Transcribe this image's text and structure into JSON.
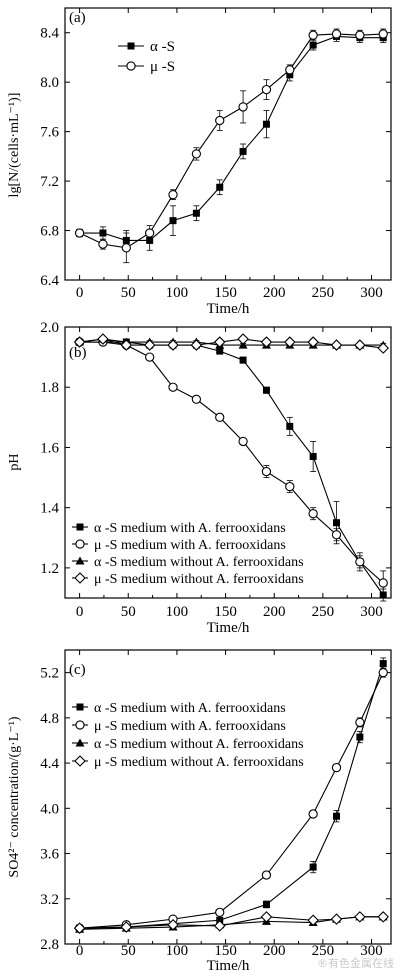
{
  "watermark": "®有色金属在线",
  "chart_data": [
    {
      "type": "line",
      "panel_label": "(a)",
      "xlabel": "Time/h",
      "ylabel": "lg[N/(cells·mL⁻¹)]",
      "xlim": [
        -15,
        320
      ],
      "ylim": [
        6.4,
        8.6
      ],
      "xticks": [
        0,
        50,
        100,
        150,
        200,
        250,
        300
      ],
      "yticks": [
        6.4,
        6.8,
        7.2,
        7.6,
        8.0,
        8.4
      ],
      "legend_position": "top-left",
      "series": [
        {
          "name": "α -S",
          "marker": "square-filled",
          "x": [
            0,
            24,
            48,
            72,
            96,
            120,
            144,
            168,
            192,
            216,
            240,
            264,
            288,
            312
          ],
          "y": [
            6.78,
            6.78,
            6.72,
            6.72,
            6.88,
            6.94,
            7.15,
            7.44,
            7.66,
            8.06,
            8.3,
            8.37,
            8.36,
            8.36
          ],
          "err": [
            0.03,
            0.05,
            0.08,
            0.08,
            0.12,
            0.06,
            0.06,
            0.06,
            0.11,
            0.05,
            0.04,
            0.04,
            0.04,
            0.04
          ]
        },
        {
          "name": "μ -S",
          "marker": "circle-open",
          "x": [
            0,
            24,
            48,
            72,
            96,
            120,
            144,
            168,
            192,
            216,
            240,
            264,
            288,
            312
          ],
          "y": [
            6.78,
            6.69,
            6.66,
            6.78,
            7.09,
            7.42,
            7.69,
            7.8,
            7.94,
            8.1,
            8.38,
            8.39,
            8.38,
            8.39
          ],
          "err": [
            0.03,
            0.04,
            0.12,
            0.06,
            0.04,
            0.05,
            0.08,
            0.13,
            0.08,
            0.04,
            0.04,
            0.04,
            0.04,
            0.04
          ]
        }
      ]
    },
    {
      "type": "line",
      "panel_label": "(b)",
      "xlabel": "Time/h",
      "ylabel": "pH",
      "xlim": [
        -15,
        320
      ],
      "ylim": [
        1.1,
        2.0
      ],
      "xticks": [
        0,
        50,
        100,
        150,
        200,
        250,
        300
      ],
      "yticks": [
        1.2,
        1.4,
        1.6,
        1.8,
        2.0
      ],
      "legend_position": "bottom-left",
      "series": [
        {
          "name": "α -S medium with A. ferrooxidans",
          "marker": "square-filled",
          "x": [
            0,
            24,
            48,
            72,
            96,
            120,
            144,
            168,
            192,
            216,
            240,
            264,
            288,
            312
          ],
          "y": [
            1.95,
            1.95,
            1.95,
            1.94,
            1.94,
            1.94,
            1.92,
            1.89,
            1.79,
            1.67,
            1.57,
            1.35,
            1.22,
            1.11
          ],
          "err": [
            0.01,
            0.01,
            0.01,
            0.01,
            0.01,
            0.01,
            0.01,
            0.01,
            0.01,
            0.03,
            0.05,
            0.07,
            0.03,
            0.02
          ]
        },
        {
          "name": "μ -S medium with A. ferrooxidans",
          "marker": "circle-open",
          "x": [
            0,
            24,
            48,
            72,
            96,
            120,
            144,
            168,
            192,
            216,
            240,
            264,
            288,
            312
          ],
          "y": [
            1.95,
            1.95,
            1.94,
            1.9,
            1.8,
            1.76,
            1.7,
            1.62,
            1.52,
            1.47,
            1.38,
            1.31,
            1.22,
            1.15
          ],
          "err": [
            0.01,
            0.01,
            0.01,
            0.01,
            0.01,
            0.01,
            0.01,
            0.01,
            0.02,
            0.02,
            0.02,
            0.02,
            0.02,
            0.04
          ]
        },
        {
          "name": "α -S medium without A. ferrooxidans",
          "marker": "triangle-filled",
          "x": [
            0,
            24,
            48,
            72,
            96,
            120,
            144,
            168,
            192,
            216,
            240,
            264,
            288,
            312
          ],
          "y": [
            1.95,
            1.96,
            1.95,
            1.95,
            1.95,
            1.95,
            1.94,
            1.94,
            1.94,
            1.94,
            1.94,
            1.94,
            1.94,
            1.94
          ],
          "err": [
            0.005,
            0.005,
            0.005,
            0.005,
            0.005,
            0.005,
            0.005,
            0.005,
            0.005,
            0.005,
            0.005,
            0.005,
            0.005,
            0.005
          ]
        },
        {
          "name": "μ -S medium without A. ferrooxidans",
          "marker": "diamond-open",
          "x": [
            0,
            24,
            48,
            72,
            96,
            120,
            144,
            168,
            192,
            216,
            240,
            264,
            288,
            312
          ],
          "y": [
            1.95,
            1.96,
            1.94,
            1.94,
            1.94,
            1.94,
            1.95,
            1.96,
            1.95,
            1.95,
            1.95,
            1.94,
            1.94,
            1.93
          ],
          "err": [
            0.005,
            0.005,
            0.005,
            0.005,
            0.005,
            0.005,
            0.005,
            0.005,
            0.005,
            0.005,
            0.005,
            0.005,
            0.005,
            0.005
          ]
        }
      ]
    },
    {
      "type": "line",
      "panel_label": "(c)",
      "xlabel": "Time/h",
      "ylabel": "SO4²⁻ concentration/(g·L⁻¹)",
      "xlim": [
        -15,
        320
      ],
      "ylim": [
        2.8,
        5.4
      ],
      "xticks": [
        0,
        50,
        100,
        150,
        200,
        250,
        300
      ],
      "yticks": [
        2.8,
        3.2,
        3.6,
        4.0,
        4.4,
        4.8,
        5.2
      ],
      "legend_position": "top-left",
      "series": [
        {
          "name": "α -S medium with A. ferrooxidans",
          "marker": "square-filled",
          "x": [
            0,
            48,
            96,
            144,
            192,
            240,
            264,
            288,
            312
          ],
          "y": [
            2.94,
            2.95,
            2.98,
            3.01,
            3.15,
            3.48,
            3.93,
            4.63,
            5.28
          ],
          "err": [
            0.02,
            0.02,
            0.02,
            0.02,
            0.03,
            0.05,
            0.05,
            0.05,
            0.05
          ]
        },
        {
          "name": "μ -S medium with A. ferrooxidans",
          "marker": "circle-open",
          "x": [
            0,
            48,
            96,
            144,
            192,
            240,
            264,
            288,
            312
          ],
          "y": [
            2.94,
            2.97,
            3.02,
            3.08,
            3.41,
            3.95,
            4.36,
            4.76,
            5.2
          ],
          "err": [
            0.02,
            0.02,
            0.02,
            0.02,
            0.03,
            0.03,
            0.03,
            0.04,
            0.04
          ]
        },
        {
          "name": "α -S medium without A. ferrooxidans",
          "marker": "triangle-filled",
          "x": [
            0,
            48,
            96,
            144,
            192,
            240,
            264,
            288,
            312
          ],
          "y": [
            2.93,
            2.94,
            2.95,
            2.97,
            3.0,
            2.99,
            3.02,
            3.04,
            3.04
          ],
          "err": [
            0.01,
            0.01,
            0.01,
            0.01,
            0.01,
            0.01,
            0.01,
            0.01,
            0.01
          ]
        },
        {
          "name": "μ -S medium without A. ferrooxidans",
          "marker": "diamond-open",
          "x": [
            0,
            48,
            96,
            144,
            192,
            240,
            264,
            288,
            312
          ],
          "y": [
            2.94,
            2.95,
            2.97,
            2.96,
            3.04,
            3.01,
            3.02,
            3.04,
            3.04
          ],
          "err": [
            0.01,
            0.01,
            0.01,
            0.01,
            0.01,
            0.01,
            0.01,
            0.01,
            0.01
          ]
        }
      ]
    }
  ]
}
